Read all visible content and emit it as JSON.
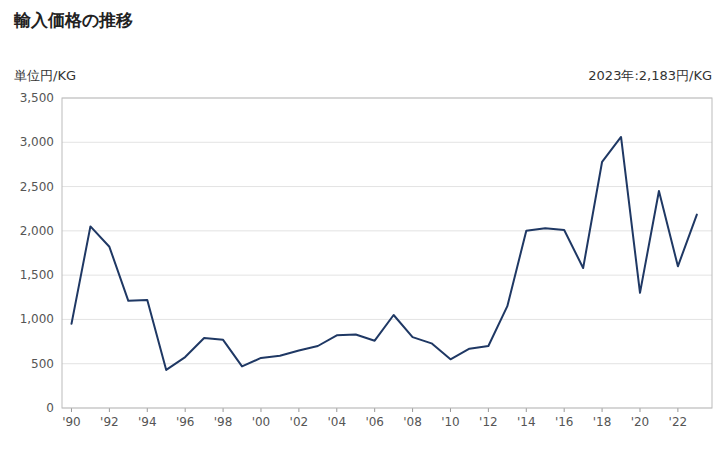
{
  "chart_data": {
    "type": "line",
    "title": "輸入価格の推移",
    "y_label": "単位円/KG",
    "annotation": "2023年:2,183円/KG",
    "x": [
      1990,
      1991,
      1992,
      1993,
      1994,
      1995,
      1996,
      1997,
      1998,
      1999,
      2000,
      2001,
      2002,
      2003,
      2004,
      2005,
      2006,
      2007,
      2008,
      2009,
      2010,
      2011,
      2012,
      2013,
      2014,
      2015,
      2016,
      2017,
      2018,
      2019,
      2020,
      2021,
      2022,
      2023
    ],
    "values": [
      950,
      2050,
      1820,
      1210,
      1220,
      430,
      575,
      790,
      770,
      470,
      565,
      590,
      650,
      700,
      820,
      830,
      760,
      1050,
      800,
      730,
      550,
      670,
      700,
      1150,
      2000,
      2030,
      2010,
      1580,
      2780,
      3060,
      1300,
      2450,
      1600,
      2183
    ],
    "color": "#1f3864",
    "xlim": [
      1989.5,
      2023.8
    ],
    "xticks": [
      {
        "value": 1990,
        "label": "'90"
      },
      {
        "value": 1992,
        "label": "'92"
      },
      {
        "value": 1994,
        "label": "'94"
      },
      {
        "value": 1996,
        "label": "'96"
      },
      {
        "value": 1998,
        "label": "'98"
      },
      {
        "value": 2000,
        "label": "'00"
      },
      {
        "value": 2002,
        "label": "'02"
      },
      {
        "value": 2004,
        "label": "'04"
      },
      {
        "value": 2006,
        "label": "'06"
      },
      {
        "value": 2008,
        "label": "'08"
      },
      {
        "value": 2010,
        "label": "'10"
      },
      {
        "value": 2012,
        "label": "'12"
      },
      {
        "value": 2014,
        "label": "'14"
      },
      {
        "value": 2016,
        "label": "'16"
      },
      {
        "value": 2018,
        "label": "'18"
      },
      {
        "value": 2020,
        "label": "'20"
      },
      {
        "value": 2022,
        "label": "'22"
      }
    ],
    "ylim": [
      0,
      3500
    ],
    "yticks": [
      0,
      500,
      {
        "value": 1000,
        "label": "1,000"
      },
      {
        "value": 1500,
        "label": "1,500"
      },
      {
        "value": 2000,
        "label": "2,000"
      },
      {
        "value": 2500,
        "label": "2,500"
      },
      {
        "value": 3000,
        "label": "3,000"
      },
      {
        "value": 3500,
        "label": "3,500"
      }
    ],
    "grid": true
  }
}
